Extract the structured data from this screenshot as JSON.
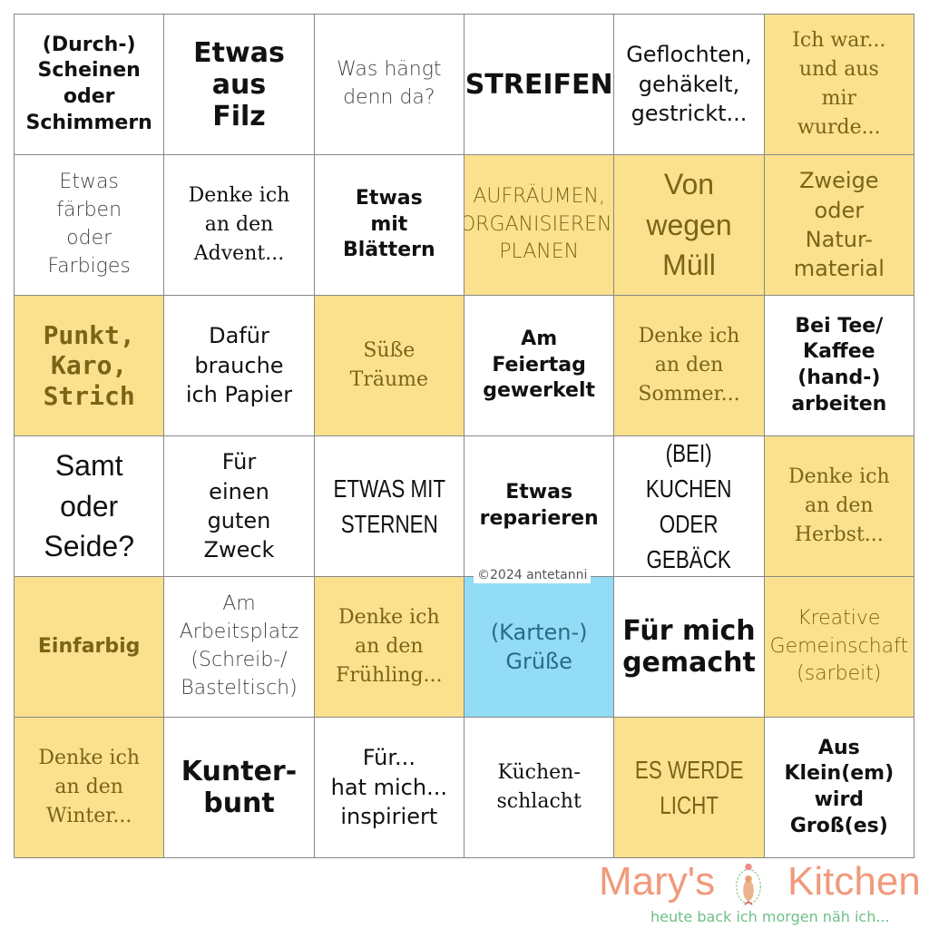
{
  "colors": {
    "highlight": "#fbe18e",
    "highlight_text": "#7a6418",
    "center": "#92dcf6",
    "watermark": "#eb7850",
    "tagline": "#6fbf86"
  },
  "cells": [
    {
      "text": "(Durch-)\nScheinen\noder\nSchimmern",
      "style": "w-heavy",
      "mark": ""
    },
    {
      "text": "Etwas\naus\nFilz",
      "style": "w-xl",
      "mark": ""
    },
    {
      "text": "Was hängt\ndenn da?",
      "style": "w-light",
      "mark": ""
    },
    {
      "text": "STREIFEN",
      "style": "w-xl",
      "mark": ""
    },
    {
      "text": "Geflochten,\ngehäkelt,\ngestrickt...",
      "style": "w-reg",
      "mark": ""
    },
    {
      "text": "Ich war...\nund aus\nmir\nwurde...",
      "style": "w-serif",
      "mark": "hl"
    },
    {
      "text": "Etwas\nfärben\noder\nFarbiges",
      "style": "w-light",
      "mark": ""
    },
    {
      "text": "Denke ich\nan den\nAdvent...",
      "style": "w-serif",
      "mark": ""
    },
    {
      "text": "Etwas\nmit\nBlättern",
      "style": "w-heavy",
      "mark": ""
    },
    {
      "text": "AUFRÄUMEN,\nORGANISIEREN,\nPLANEN",
      "style": "w-light",
      "mark": "hl"
    },
    {
      "text": "Von\nwegen\nMüll",
      "style": "w-big",
      "mark": "hl"
    },
    {
      "text": "Zweige\noder\nNatur-\nmaterial",
      "style": "w-reg",
      "mark": "hl"
    },
    {
      "text": "Punkt,\nKaro,\nStrich",
      "style": "w-mono",
      "mark": "hl"
    },
    {
      "text": "Dafür\nbrauche\nich Papier",
      "style": "w-reg",
      "mark": ""
    },
    {
      "text": "Süße\nTräume",
      "style": "w-serif",
      "mark": "hl"
    },
    {
      "text": "Am\nFeiertag\ngewerkelt",
      "style": "w-heavy",
      "mark": ""
    },
    {
      "text": "Denke ich\nan den\nSommer...",
      "style": "w-serif",
      "mark": "hl"
    },
    {
      "text": "Bei Tee/\nKaffee\n(hand-)\narbeiten",
      "style": "w-heavy",
      "mark": ""
    },
    {
      "text": "Samt\noder\nSeide?",
      "style": "w-big",
      "mark": ""
    },
    {
      "text": "Für\neinen\nguten\nZweck",
      "style": "w-reg",
      "mark": ""
    },
    {
      "text": "ETWAS MIT\nSTERNEN",
      "style": "w-cond",
      "mark": ""
    },
    {
      "text": "Etwas\nreparieren",
      "style": "w-heavy",
      "mark": ""
    },
    {
      "text": "(BEI) KUCHEN\nODER GEBÄCK",
      "style": "w-cond",
      "mark": ""
    },
    {
      "text": "Denke ich\nan den\nHerbst...",
      "style": "w-serif",
      "mark": "hl"
    },
    {
      "text": "Einfarbig",
      "style": "w-heavy",
      "mark": "hl"
    },
    {
      "text": "Am\nArbeitsplatz\n(Schreib-/\nBasteltisch)",
      "style": "w-light",
      "mark": ""
    },
    {
      "text": "Denke ich\nan den\nFrühling...",
      "style": "w-serif",
      "mark": "hl"
    },
    {
      "text": "(Karten-)\nGrüße",
      "style": "w-reg",
      "mark": "blue"
    },
    {
      "text": "Für mich\ngemacht",
      "style": "w-xl",
      "mark": ""
    },
    {
      "text": "Kreative\nGemeinschaft\n(sarbeit)",
      "style": "w-light",
      "mark": "hl"
    },
    {
      "text": "Denke ich\nan den\nWinter...",
      "style": "w-serif",
      "mark": "hl"
    },
    {
      "text": "Kunter-\nbunt",
      "style": "w-xl",
      "mark": ""
    },
    {
      "text": "Für...\nhat mich...\ninspiriert",
      "style": "w-reg",
      "mark": ""
    },
    {
      "text": "Küchen-\nschlacht",
      "style": "w-serif",
      "mark": ""
    },
    {
      "text": "ES WERDE\nLICHT",
      "style": "w-cond",
      "mark": "hl"
    },
    {
      "text": "Aus\nKlein(em)\nwird\nGroß(es)",
      "style": "w-heavy",
      "mark": ""
    }
  ],
  "copyright": "©2024 antetanni",
  "watermark": {
    "left": "Mary's",
    "right": "Kitchen",
    "tagline": "heute back ich morgen näh ich..."
  }
}
